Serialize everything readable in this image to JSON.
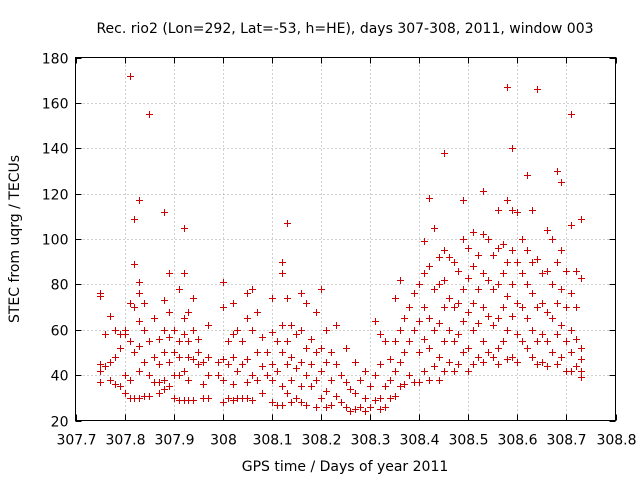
{
  "chart_data": {
    "type": "scatter",
    "title": "Rec. rio2 (Lon=292, Lat=-53, h=HE), days 307-308, 2011, window 003",
    "xlabel": "GPS time / Days of year 2011",
    "ylabel": "STEC from uqrg / TECUs",
    "xlim": [
      307.7,
      308.8
    ],
    "ylim": [
      20,
      180
    ],
    "xticks": [
      307.7,
      307.8,
      307.9,
      308.0,
      308.1,
      308.2,
      308.3,
      308.4,
      308.5,
      308.6,
      308.7,
      308.8
    ],
    "xtick_labels": [
      "307.7",
      "307.8",
      "307.9",
      "308",
      "308.1",
      "308.2",
      "308.3",
      "308.4",
      "308.5",
      "308.6",
      "308.7",
      "308.8"
    ],
    "yticks": [
      20,
      40,
      60,
      80,
      100,
      120,
      140,
      160,
      180
    ],
    "ytick_labels": [
      "20",
      "40",
      "60",
      "80",
      "100",
      "120",
      "140",
      "160",
      "180"
    ],
    "grid": true,
    "marker": "plus",
    "color": "#cc0000",
    "points": [
      [
        307.75,
        76
      ],
      [
        307.75,
        75
      ],
      [
        307.75,
        45
      ],
      [
        307.75,
        42
      ],
      [
        307.75,
        37
      ],
      [
        307.76,
        44
      ],
      [
        307.76,
        58
      ],
      [
        307.77,
        66
      ],
      [
        307.77,
        46
      ],
      [
        307.77,
        38
      ],
      [
        307.78,
        36
      ],
      [
        307.78,
        60
      ],
      [
        307.78,
        48
      ],
      [
        307.79,
        35
      ],
      [
        307.79,
        52
      ],
      [
        307.79,
        58
      ],
      [
        307.8,
        40
      ],
      [
        307.8,
        60
      ],
      [
        307.8,
        58
      ],
      [
        307.8,
        32
      ],
      [
        307.81,
        172
      ],
      [
        307.81,
        72
      ],
      [
        307.81,
        55
      ],
      [
        307.81,
        38
      ],
      [
        307.81,
        30
      ],
      [
        307.82,
        109
      ],
      [
        307.82,
        89
      ],
      [
        307.82,
        70
      ],
      [
        307.82,
        50
      ],
      [
        307.82,
        30
      ],
      [
        307.83,
        117
      ],
      [
        307.83,
        76
      ],
      [
        307.83,
        81
      ],
      [
        307.83,
        64
      ],
      [
        307.83,
        53
      ],
      [
        307.83,
        42
      ],
      [
        307.83,
        30
      ],
      [
        307.84,
        72
      ],
      [
        307.84,
        60
      ],
      [
        307.84,
        46
      ],
      [
        307.84,
        31
      ],
      [
        307.85,
        155
      ],
      [
        307.85,
        55
      ],
      [
        307.85,
        40
      ],
      [
        307.85,
        31
      ],
      [
        307.86,
        65
      ],
      [
        307.86,
        48
      ],
      [
        307.86,
        37
      ],
      [
        307.87,
        56
      ],
      [
        307.87,
        45
      ],
      [
        307.87,
        37
      ],
      [
        307.87,
        32
      ],
      [
        307.88,
        112
      ],
      [
        307.88,
        73
      ],
      [
        307.88,
        60
      ],
      [
        307.88,
        50
      ],
      [
        307.88,
        38
      ],
      [
        307.88,
        34
      ],
      [
        307.89,
        85
      ],
      [
        307.89,
        68
      ],
      [
        307.89,
        57
      ],
      [
        307.89,
        46
      ],
      [
        307.89,
        35
      ],
      [
        307.9,
        60
      ],
      [
        307.9,
        50
      ],
      [
        307.9,
        40
      ],
      [
        307.9,
        30
      ],
      [
        307.91,
        78
      ],
      [
        307.91,
        55
      ],
      [
        307.91,
        48
      ],
      [
        307.91,
        40
      ],
      [
        307.91,
        29
      ],
      [
        307.92,
        105
      ],
      [
        307.92,
        85
      ],
      [
        307.92,
        65
      ],
      [
        307.92,
        58
      ],
      [
        307.92,
        42
      ],
      [
        307.92,
        29
      ],
      [
        307.93,
        68
      ],
      [
        307.93,
        55
      ],
      [
        307.93,
        48
      ],
      [
        307.93,
        38
      ],
      [
        307.93,
        29
      ],
      [
        307.94,
        74
      ],
      [
        307.94,
        60
      ],
      [
        307.94,
        47
      ],
      [
        307.94,
        29
      ],
      [
        307.95,
        56
      ],
      [
        307.95,
        50
      ],
      [
        307.95,
        45
      ],
      [
        307.96,
        46
      ],
      [
        307.96,
        36
      ],
      [
        307.96,
        30
      ],
      [
        307.97,
        62
      ],
      [
        307.97,
        48
      ],
      [
        307.97,
        40
      ],
      [
        307.97,
        30
      ],
      [
        307.99,
        46
      ],
      [
        307.99,
        40
      ],
      [
        308.0,
        81
      ],
      [
        308.0,
        70
      ],
      [
        308.0,
        47
      ],
      [
        308.0,
        38
      ],
      [
        308.0,
        28
      ],
      [
        308.01,
        55
      ],
      [
        308.01,
        45
      ],
      [
        308.01,
        30
      ],
      [
        308.02,
        72
      ],
      [
        308.02,
        58
      ],
      [
        308.02,
        48
      ],
      [
        308.02,
        36
      ],
      [
        308.02,
        29
      ],
      [
        308.03,
        60
      ],
      [
        308.03,
        42
      ],
      [
        308.03,
        30
      ],
      [
        308.04,
        55
      ],
      [
        308.04,
        45
      ],
      [
        308.04,
        30
      ],
      [
        308.05,
        76
      ],
      [
        308.05,
        65
      ],
      [
        308.05,
        47
      ],
      [
        308.05,
        37
      ],
      [
        308.05,
        30
      ],
      [
        308.06,
        78
      ],
      [
        308.06,
        60
      ],
      [
        308.06,
        40
      ],
      [
        308.06,
        29
      ],
      [
        308.07,
        68
      ],
      [
        308.07,
        50
      ],
      [
        308.07,
        38
      ],
      [
        308.08,
        57
      ],
      [
        308.08,
        44
      ],
      [
        308.08,
        32
      ],
      [
        308.09,
        50
      ],
      [
        308.09,
        40
      ],
      [
        308.1,
        74
      ],
      [
        308.1,
        59
      ],
      [
        308.1,
        45
      ],
      [
        308.1,
        38
      ],
      [
        308.1,
        28
      ],
      [
        308.11,
        55
      ],
      [
        308.11,
        42
      ],
      [
        308.11,
        27
      ],
      [
        308.12,
        90
      ],
      [
        308.12,
        85
      ],
      [
        308.12,
        62
      ],
      [
        308.12,
        50
      ],
      [
        308.12,
        35
      ],
      [
        308.12,
        27
      ],
      [
        308.13,
        107
      ],
      [
        308.13,
        74
      ],
      [
        308.13,
        55
      ],
      [
        308.13,
        45
      ],
      [
        308.13,
        32
      ],
      [
        308.14,
        62
      ],
      [
        308.14,
        48
      ],
      [
        308.14,
        38
      ],
      [
        308.14,
        28
      ],
      [
        308.15,
        58
      ],
      [
        308.15,
        43
      ],
      [
        308.15,
        30
      ],
      [
        308.16,
        76
      ],
      [
        308.16,
        60
      ],
      [
        308.16,
        46
      ],
      [
        308.16,
        35
      ],
      [
        308.16,
        28
      ],
      [
        308.17,
        72
      ],
      [
        308.17,
        52
      ],
      [
        308.17,
        40
      ],
      [
        308.17,
        27
      ],
      [
        308.18,
        56
      ],
      [
        308.18,
        45
      ],
      [
        308.18,
        35
      ],
      [
        308.19,
        68
      ],
      [
        308.19,
        50
      ],
      [
        308.19,
        38
      ],
      [
        308.19,
        26
      ],
      [
        308.2,
        78
      ],
      [
        308.2,
        52
      ],
      [
        308.2,
        42
      ],
      [
        308.2,
        30
      ],
      [
        308.21,
        60
      ],
      [
        308.21,
        46
      ],
      [
        308.21,
        33
      ],
      [
        308.21,
        26
      ],
      [
        308.22,
        50
      ],
      [
        308.22,
        38
      ],
      [
        308.22,
        27
      ],
      [
        308.23,
        62
      ],
      [
        308.23,
        45
      ],
      [
        308.23,
        31
      ],
      [
        308.24,
        40
      ],
      [
        308.24,
        28
      ],
      [
        308.25,
        52
      ],
      [
        308.25,
        37
      ],
      [
        308.25,
        26
      ],
      [
        308.26,
        34
      ],
      [
        308.26,
        24
      ],
      [
        308.27,
        46
      ],
      [
        308.27,
        32
      ],
      [
        308.27,
        25
      ],
      [
        308.28,
        38
      ],
      [
        308.28,
        26
      ],
      [
        308.29,
        42
      ],
      [
        308.29,
        30
      ],
      [
        308.29,
        24
      ],
      [
        308.3,
        35
      ],
      [
        308.3,
        26
      ],
      [
        308.31,
        64
      ],
      [
        308.31,
        40
      ],
      [
        308.31,
        29
      ],
      [
        308.32,
        58
      ],
      [
        308.32,
        45
      ],
      [
        308.32,
        30
      ],
      [
        308.32,
        25
      ],
      [
        308.33,
        55
      ],
      [
        308.33,
        35
      ],
      [
        308.33,
        26
      ],
      [
        308.34,
        47
      ],
      [
        308.34,
        38
      ],
      [
        308.34,
        30
      ],
      [
        308.35,
        74
      ],
      [
        308.35,
        55
      ],
      [
        308.35,
        42
      ],
      [
        308.35,
        31
      ],
      [
        308.36,
        82
      ],
      [
        308.36,
        60
      ],
      [
        308.36,
        46
      ],
      [
        308.36,
        35
      ],
      [
        308.37,
        65
      ],
      [
        308.37,
        50
      ],
      [
        308.37,
        36
      ],
      [
        308.38,
        70
      ],
      [
        308.38,
        55
      ],
      [
        308.38,
        40
      ],
      [
        308.39,
        76
      ],
      [
        308.39,
        60
      ],
      [
        308.39,
        37
      ],
      [
        308.4,
        80
      ],
      [
        308.4,
        64
      ],
      [
        308.4,
        50
      ],
      [
        308.4,
        37
      ],
      [
        308.41,
        99
      ],
      [
        308.41,
        85
      ],
      [
        308.41,
        70
      ],
      [
        308.41,
        56
      ],
      [
        308.41,
        42
      ],
      [
        308.42,
        118
      ],
      [
        308.42,
        88
      ],
      [
        308.42,
        65
      ],
      [
        308.42,
        52
      ],
      [
        308.42,
        38
      ],
      [
        308.43,
        105
      ],
      [
        308.43,
        78
      ],
      [
        308.43,
        60
      ],
      [
        308.43,
        44
      ],
      [
        308.44,
        92
      ],
      [
        308.44,
        80
      ],
      [
        308.44,
        63
      ],
      [
        308.44,
        48
      ],
      [
        308.44,
        38
      ],
      [
        308.45,
        138
      ],
      [
        308.45,
        95
      ],
      [
        308.45,
        82
      ],
      [
        308.45,
        70
      ],
      [
        308.45,
        55
      ],
      [
        308.45,
        42
      ],
      [
        308.46,
        92
      ],
      [
        308.46,
        74
      ],
      [
        308.46,
        60
      ],
      [
        308.46,
        46
      ],
      [
        308.47,
        90
      ],
      [
        308.47,
        70
      ],
      [
        308.47,
        55
      ],
      [
        308.47,
        42
      ],
      [
        308.48,
        86
      ],
      [
        308.48,
        72
      ],
      [
        308.48,
        58
      ],
      [
        308.48,
        45
      ],
      [
        308.49,
        117
      ],
      [
        308.49,
        100
      ],
      [
        308.49,
        78
      ],
      [
        308.49,
        64
      ],
      [
        308.49,
        50
      ],
      [
        308.5,
        96
      ],
      [
        308.5,
        83
      ],
      [
        308.5,
        68
      ],
      [
        308.5,
        52
      ],
      [
        308.5,
        42
      ],
      [
        308.51,
        103
      ],
      [
        308.51,
        88
      ],
      [
        308.51,
        72
      ],
      [
        308.51,
        60
      ],
      [
        308.51,
        45
      ],
      [
        308.52,
        93
      ],
      [
        308.52,
        78
      ],
      [
        308.52,
        63
      ],
      [
        308.52,
        48
      ],
      [
        308.53,
        121
      ],
      [
        308.53,
        102
      ],
      [
        308.53,
        85
      ],
      [
        308.53,
        70
      ],
      [
        308.53,
        55
      ],
      [
        308.53,
        46
      ],
      [
        308.54,
        100
      ],
      [
        308.54,
        82
      ],
      [
        308.54,
        66
      ],
      [
        308.54,
        50
      ],
      [
        308.55,
        93
      ],
      [
        308.55,
        78
      ],
      [
        308.55,
        62
      ],
      [
        308.55,
        48
      ],
      [
        308.56,
        113
      ],
      [
        308.56,
        96
      ],
      [
        308.56,
        80
      ],
      [
        308.56,
        65
      ],
      [
        308.56,
        52
      ],
      [
        308.56,
        45
      ],
      [
        308.57,
        98
      ],
      [
        308.57,
        85
      ],
      [
        308.57,
        70
      ],
      [
        308.57,
        55
      ],
      [
        308.58,
        167
      ],
      [
        308.58,
        117
      ],
      [
        308.58,
        90
      ],
      [
        308.58,
        75
      ],
      [
        308.58,
        60
      ],
      [
        308.58,
        47
      ],
      [
        308.59,
        140
      ],
      [
        308.59,
        113
      ],
      [
        308.59,
        95
      ],
      [
        308.59,
        80
      ],
      [
        308.59,
        66
      ],
      [
        308.59,
        48
      ],
      [
        308.6,
        112
      ],
      [
        308.6,
        90
      ],
      [
        308.6,
        72
      ],
      [
        308.6,
        58
      ],
      [
        308.6,
        46
      ],
      [
        308.61,
        100
      ],
      [
        308.61,
        85
      ],
      [
        308.61,
        70
      ],
      [
        308.61,
        55
      ],
      [
        308.62,
        128
      ],
      [
        308.62,
        95
      ],
      [
        308.62,
        80
      ],
      [
        308.62,
        65
      ],
      [
        308.62,
        52
      ],
      [
        308.63,
        113
      ],
      [
        308.63,
        90
      ],
      [
        308.63,
        76
      ],
      [
        308.63,
        60
      ],
      [
        308.63,
        48
      ],
      [
        308.64,
        166
      ],
      [
        308.64,
        91
      ],
      [
        308.64,
        70
      ],
      [
        308.64,
        55
      ],
      [
        308.64,
        45
      ],
      [
        308.65,
        85
      ],
      [
        308.65,
        72
      ],
      [
        308.65,
        58
      ],
      [
        308.65,
        46
      ],
      [
        308.66,
        104
      ],
      [
        308.66,
        86
      ],
      [
        308.66,
        68
      ],
      [
        308.66,
        55
      ],
      [
        308.66,
        44
      ],
      [
        308.67,
        100
      ],
      [
        308.67,
        80
      ],
      [
        308.67,
        65
      ],
      [
        308.67,
        50
      ],
      [
        308.68,
        130
      ],
      [
        308.68,
        90
      ],
      [
        308.68,
        72
      ],
      [
        308.68,
        58
      ],
      [
        308.68,
        45
      ],
      [
        308.69,
        125
      ],
      [
        308.69,
        95
      ],
      [
        308.69,
        78
      ],
      [
        308.69,
        62
      ],
      [
        308.69,
        48
      ],
      [
        308.7,
        86
      ],
      [
        308.7,
        70
      ],
      [
        308.7,
        55
      ],
      [
        308.7,
        42
      ],
      [
        308.71,
        155
      ],
      [
        308.71,
        106
      ],
      [
        308.71,
        76
      ],
      [
        308.71,
        60
      ],
      [
        308.71,
        50
      ],
      [
        308.71,
        42
      ],
      [
        308.72,
        86
      ],
      [
        308.72,
        70
      ],
      [
        308.72,
        56
      ],
      [
        308.72,
        44
      ],
      [
        308.73,
        109
      ],
      [
        308.73,
        83
      ],
      [
        308.73,
        52
      ],
      [
        308.73,
        47
      ],
      [
        308.73,
        42
      ],
      [
        308.73,
        39
      ]
    ]
  }
}
